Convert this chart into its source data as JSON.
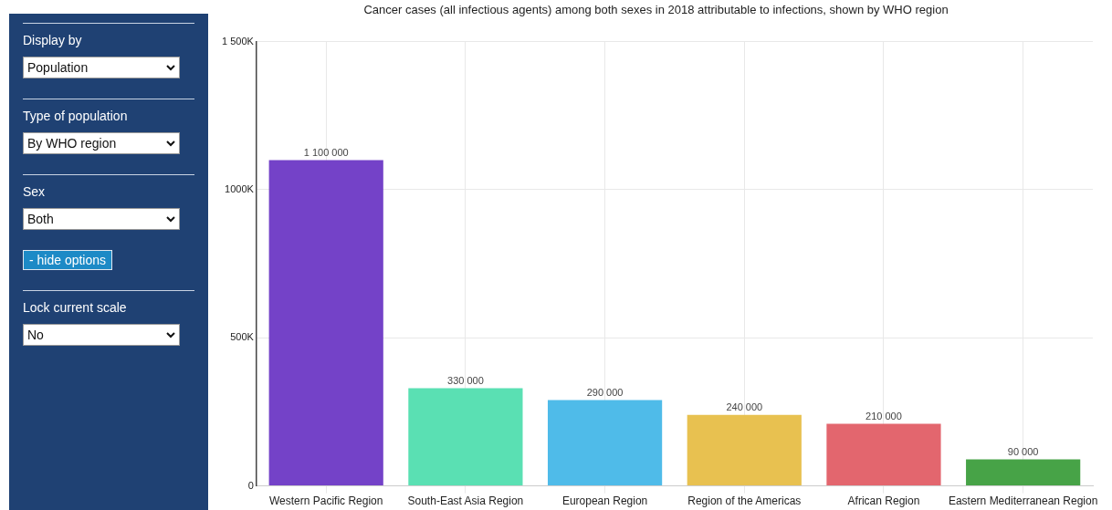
{
  "chart_data": {
    "type": "bar",
    "title": "Cancer cases (all infectious agents) among both sexes in 2018 attributable to infections, shown by WHO region",
    "categories": [
      "Western Pacific Region",
      "South-East Asia Region",
      "European Region",
      "Region of the Americas",
      "African Region",
      "Eastern Mediterranean Region"
    ],
    "values": [
      1100000,
      330000,
      290000,
      240000,
      210000,
      90000
    ],
    "colors": [
      "#7442c8",
      "#5ae0b3",
      "#4fbbe9",
      "#e8c150",
      "#e3666e",
      "#47a347"
    ],
    "value_labels": [
      "1 100 000",
      "330 000",
      "290 000",
      "240 000",
      "210 000",
      "90 000"
    ],
    "ylim": [
      0,
      1500000
    ],
    "yticks": [
      0,
      {
        "value": 500000,
        "label": "500K"
      },
      {
        "value": 1000000,
        "label": "1000K"
      },
      {
        "value": 1500000,
        "label": "1 500K"
      }
    ],
    "grid": true,
    "annotations": [
      "Display by",
      "Population",
      "Type of population",
      "By WHO region",
      "Sex",
      "Both",
      "- hide options",
      "Lock current scale",
      "No"
    ]
  }
}
